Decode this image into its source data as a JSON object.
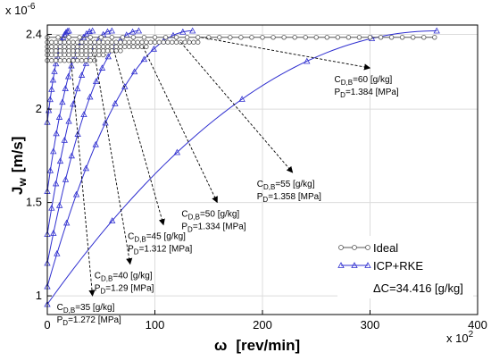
{
  "chart_data": {
    "type": "line",
    "xlabel_symbol": "ω",
    "xlabel_unit": "[rev/min]",
    "x_multiplier": "x 10",
    "x_multiplier_exp": "2",
    "ylabel_main": "J",
    "ylabel_sub": "w",
    "ylabel_unit": "[m/s]",
    "y_multiplier": "x 10",
    "y_multiplier_exp": "-6",
    "xlim": [
      0,
      400
    ],
    "ylim": [
      0.9,
      2.45
    ],
    "xticks": [
      0,
      100,
      200,
      300,
      400
    ],
    "yticks": [
      1,
      1.5,
      2,
      2.4
    ],
    "xtick_labels": [
      "0",
      "100",
      "200",
      "300",
      "400"
    ],
    "ytick_labels": [
      "1",
      "1.5",
      "2",
      "2.4"
    ],
    "grid": true,
    "legend": {
      "placement": "bottom-right",
      "entries": [
        {
          "label": "Ideal",
          "marker": "circle",
          "color": "#555555"
        },
        {
          "label": "ICP+RKE",
          "marker": "triangle",
          "color": "#3030d0"
        }
      ],
      "note": "ΔC=34.416 [g/kg]"
    },
    "ideal_series": [
      {
        "cdb": 35,
        "y": 2.26,
        "x_end": 45
      },
      {
        "cdb": 40,
        "y": 2.29,
        "x_end": 55
      },
      {
        "cdb": 45,
        "y": 2.312,
        "x_end": 68
      },
      {
        "cdb": 50,
        "y": 2.334,
        "x_end": 92
      },
      {
        "cdb": 55,
        "y": 2.358,
        "x_end": 140
      },
      {
        "cdb": 60,
        "y": 2.384,
        "x_end": 360
      }
    ],
    "icp_series": [
      {
        "cdb": 35,
        "y0": 1.93,
        "x_end": 20
      },
      {
        "cdb": 40,
        "y0": 1.56,
        "x_end": 42
      },
      {
        "cdb": 45,
        "y0": 1.33,
        "x_end": 60
      },
      {
        "cdb": 50,
        "y0": 1.175,
        "x_end": 85
      },
      {
        "cdb": 55,
        "y0": 1.05,
        "x_end": 135
      },
      {
        "cdb": 60,
        "y0": 0.955,
        "x_end": 362
      }
    ],
    "annotations": [
      {
        "cd_main": "C",
        "cd_sub": "D,B",
        "cd_text": "=35 [g/kg]",
        "pd_main": "P",
        "pd_sub": "D",
        "pd_text": "=1.272 [MPa]",
        "arrow_from": [
          22,
          2.26
        ],
        "arrow_to": [
          42,
          1.0
        ]
      },
      {
        "cd_main": "C",
        "cd_sub": "D,B",
        "cd_text": "=40 [g/kg]",
        "pd_main": "P",
        "pd_sub": "D",
        "pd_text": "=1.29 [MPa]",
        "arrow_from": [
          44,
          2.29
        ],
        "arrow_to": [
          77,
          1.17
        ]
      },
      {
        "cd_main": "C",
        "cd_sub": "D,B",
        "cd_text": "=45 [g/kg]",
        "pd_main": "P",
        "pd_sub": "D",
        "pd_text": "=1.312 [MPa]",
        "arrow_from": [
          62,
          2.312
        ],
        "arrow_to": [
          108,
          1.38
        ]
      },
      {
        "cd_main": "C",
        "cd_sub": "D,B",
        "cd_text": "=50 [g/kg]",
        "pd_main": "P",
        "pd_sub": "D",
        "pd_text": "=1.334 [MPa]",
        "arrow_from": [
          89,
          2.334
        ],
        "arrow_to": [
          158,
          1.5
        ]
      },
      {
        "cd_main": "C",
        "cd_sub": "D,B",
        "cd_text": "=55 [g/kg]",
        "pd_main": "P",
        "pd_sub": "D",
        "pd_text": "=1.358 [MPa]",
        "arrow_from": [
          124,
          2.358
        ],
        "arrow_to": [
          228,
          1.66
        ]
      },
      {
        "cd_main": "C",
        "cd_sub": "D,B",
        "cd_text": "=60 [g/kg]",
        "pd_main": "P",
        "pd_sub": "D",
        "pd_text": "=1.384 [MPa]",
        "arrow_from": [
          143,
          2.384
        ],
        "arrow_to": [
          300,
          2.22
        ]
      }
    ]
  },
  "colors": {
    "ideal": "#555555",
    "icp": "#3030d0",
    "grid": "#dcdcdc",
    "arrow": "#000000"
  }
}
